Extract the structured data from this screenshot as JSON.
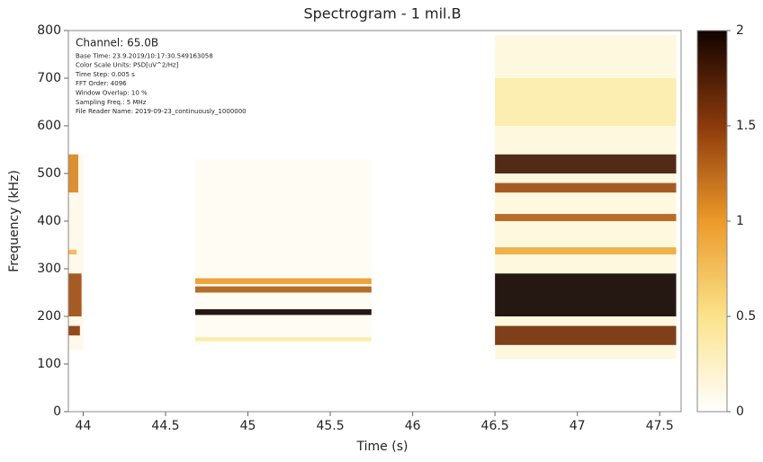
{
  "chart_data": {
    "type": "spectrogram",
    "title": "Spectrogram - 1 mil.B",
    "xlabel": "Time (s)",
    "ylabel": "Frequency (kHz)",
    "xlim": [
      43.91,
      47.63
    ],
    "xticks": [
      44,
      44.5,
      45,
      45.5,
      46,
      46.5,
      47,
      47.5
    ],
    "ylim": [
      0,
      800
    ],
    "yticks": [
      0,
      100,
      200,
      300,
      400,
      500,
      600,
      700,
      800
    ],
    "clim": [
      0,
      2
    ],
    "cticks": [
      0,
      0.5,
      1,
      1.5,
      2
    ],
    "colormap": [
      "#ffffff",
      "#fbe38a",
      "#ec9a2a",
      "#8c3a0c",
      "#120300"
    ],
    "annotations": [
      "Channel: 65.0B",
      "Base Time: 23.9.2019/10:17:30.549163058",
      "Color Scale Units: PSD[uV^2/Hz]",
      "Time Step: 0.005 s",
      "FFT Order: 4096",
      "Window Overlap: 10 %",
      "Sampling Freq.: 5 MHz",
      "File Reader Name: 2019-09-23_continuously_1000000"
    ],
    "bands": [
      {
        "t0": 43.91,
        "t1": 44.0,
        "f0": 130,
        "f1": 540,
        "value": 0.1
      },
      {
        "t0": 43.91,
        "t1": 43.98,
        "f0": 160,
        "f1": 180,
        "value": 1.5
      },
      {
        "t0": 43.91,
        "t1": 43.99,
        "f0": 200,
        "f1": 290,
        "value": 1.4
      },
      {
        "t0": 43.91,
        "t1": 43.96,
        "f0": 330,
        "f1": 340,
        "value": 0.8
      },
      {
        "t0": 43.91,
        "t1": 43.97,
        "f0": 460,
        "f1": 540,
        "value": 1.1
      },
      {
        "t0": 44.68,
        "t1": 45.75,
        "f0": 140,
        "f1": 530,
        "value": 0.05
      },
      {
        "t0": 44.68,
        "t1": 45.75,
        "f0": 148,
        "f1": 156,
        "value": 0.4
      },
      {
        "t0": 44.68,
        "t1": 45.75,
        "f0": 203,
        "f1": 215,
        "value": 2
      },
      {
        "t0": 44.68,
        "t1": 45.75,
        "f0": 250,
        "f1": 263,
        "value": 1.3
      },
      {
        "t0": 44.68,
        "t1": 45.75,
        "f0": 268,
        "f1": 280,
        "value": 1.0
      },
      {
        "t0": 46.5,
        "t1": 47.6,
        "f0": 110,
        "f1": 790,
        "value": 0.15
      },
      {
        "t0": 46.5,
        "t1": 47.6,
        "f0": 600,
        "f1": 700,
        "value": 0.35
      },
      {
        "t0": 46.5,
        "t1": 47.6,
        "f0": 140,
        "f1": 180,
        "value": 1.6
      },
      {
        "t0": 46.5,
        "t1": 47.6,
        "f0": 200,
        "f1": 290,
        "value": 2
      },
      {
        "t0": 46.5,
        "t1": 47.6,
        "f0": 330,
        "f1": 345,
        "value": 0.9
      },
      {
        "t0": 46.5,
        "t1": 47.6,
        "f0": 400,
        "f1": 415,
        "value": 1.3
      },
      {
        "t0": 46.5,
        "t1": 47.6,
        "f0": 460,
        "f1": 480,
        "value": 1.4
      },
      {
        "t0": 46.5,
        "t1": 47.6,
        "f0": 500,
        "f1": 540,
        "value": 1.8
      }
    ]
  }
}
